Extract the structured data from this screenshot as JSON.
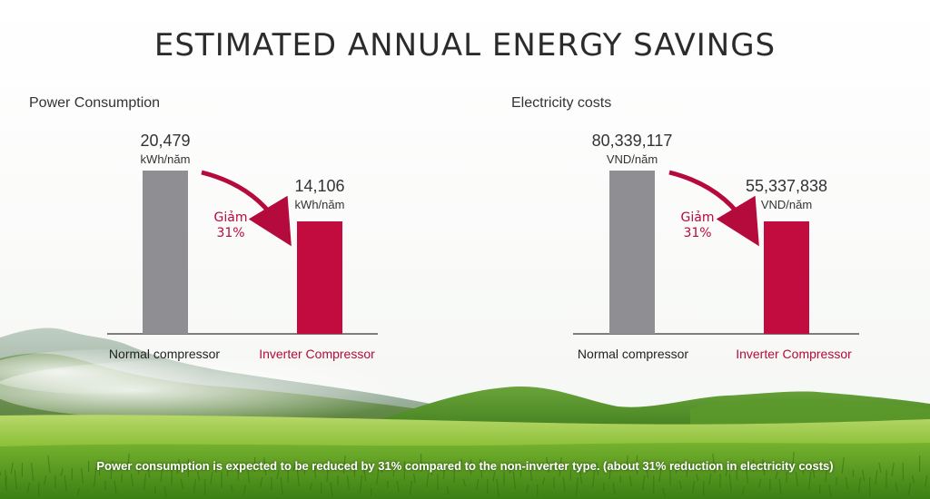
{
  "title": "ESTIMATED ANNUAL ENERGY SAVINGS",
  "footer": "Power consumption is expected to be reduced by 31% compared to the non-inverter type. (about 31% reduction in electricity costs)",
  "colors": {
    "normal_bar": "#8e8e93",
    "inverter_bar": "#c20b3e",
    "accent": "#b40a3c"
  },
  "chart_data": [
    {
      "type": "bar",
      "title": "Power Consumption",
      "categories": [
        "Normal compressor",
        "Inverter Compressor"
      ],
      "values": [
        20479,
        14106
      ],
      "value_labels": [
        "20,479",
        "14,106"
      ],
      "unit": "kWh/năm",
      "reduction_label": "Giảm",
      "reduction_value": "31%",
      "ylim": [
        0,
        20479
      ],
      "grid": false
    },
    {
      "type": "bar",
      "title": "Electricity costs",
      "categories": [
        "Normal compressor",
        "Inverter Compressor"
      ],
      "values": [
        80339117,
        55337838
      ],
      "value_labels": [
        "80,339,117",
        "55,337,838"
      ],
      "unit": "VND/năm",
      "reduction_label": "Giảm",
      "reduction_value": "31%",
      "ylim": [
        0,
        80339117
      ],
      "grid": false
    }
  ]
}
